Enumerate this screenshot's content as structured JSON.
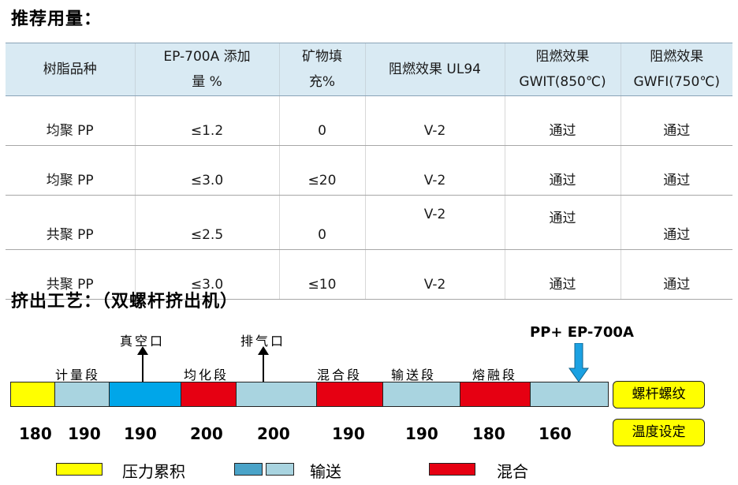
{
  "recommended_title": "推荐用量：",
  "table": {
    "headers": [
      [
        "树脂品种"
      ],
      [
        "EP-700A 添加",
        "量 %"
      ],
      [
        "矿物填",
        "充%"
      ],
      [
        "阻燃效果 UL94"
      ],
      [
        "阻燃效果",
        "GWIT(850℃)"
      ],
      [
        "阻燃效果",
        "GWFI(750℃)"
      ]
    ],
    "rows": [
      [
        "均聚 PP",
        "≤1.2",
        "0",
        "V-2",
        "通过",
        "通过"
      ],
      [
        "均聚 PP",
        "≤3.0",
        "≤20",
        "V-2",
        "通过",
        "通过"
      ],
      [
        "共聚 PP",
        "≤2.5",
        "0",
        "V-2",
        "通过",
        "通过"
      ],
      [
        "共聚 PP",
        "≤3.0",
        "≤10",
        "V-2",
        "通过",
        "通过"
      ]
    ]
  },
  "process_title": "挤出工艺：（双螺杆挤出机）",
  "process": {
    "feed_label": "PP+ EP-700A",
    "ports": [
      "真空口",
      "排气口"
    ],
    "zones": [
      "计量段",
      "均化段",
      "混合段",
      "输送段",
      "熔融段"
    ],
    "segments": [
      {
        "color": "#ffff00"
      },
      {
        "color": "#a9d4e0"
      },
      {
        "color": "#00a6e9"
      },
      {
        "color": "#e60012"
      },
      {
        "color": "#a9d4e0"
      },
      {
        "color": "#e60012"
      },
      {
        "color": "#a9d4e0"
      },
      {
        "color": "#e60012"
      },
      {
        "color": "#a9d4e0"
      }
    ],
    "temperatures": [
      "180",
      "190",
      "190",
      "200",
      "200",
      "190",
      "190",
      "180",
      "160"
    ],
    "side_labels": [
      "螺杆螺纹",
      "温度设定"
    ],
    "legend": {
      "pressure": {
        "label": "压力累积",
        "color": "#ffff00"
      },
      "convey": {
        "label": "输送",
        "colors": [
          "#4aa3c8",
          "#a9d4e0"
        ]
      },
      "mix": {
        "label": "混合",
        "color": "#e60012"
      }
    },
    "feed_arrow_color": "#1ba1e2"
  }
}
